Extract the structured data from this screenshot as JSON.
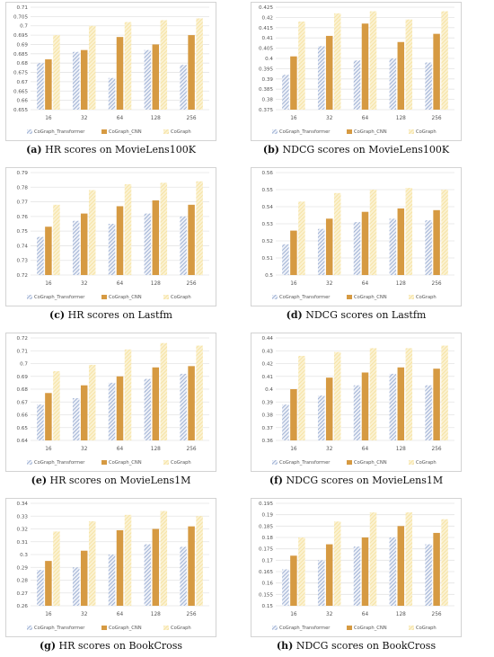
{
  "legend_labels": [
    "CoGraph_Transformer",
    "CoGraph_CNN",
    "CoGraph"
  ],
  "colors": {
    "transformer": "#8da3cc",
    "cnn": "#d69a42",
    "cograph": "#f5df99",
    "grid": "#e4e4e4",
    "frame": "#d3d3d3",
    "axis_text": "#555555"
  },
  "chart_data": [
    {
      "type": "bar",
      "caption_tag": "(a)",
      "caption_text": "HR scores on MovieLens100K",
      "categories": [
        "16",
        "32",
        "64",
        "128",
        "256"
      ],
      "ylim": [
        0.655,
        0.71
      ],
      "yticks": [
        "0.655",
        "0.66",
        "0.665",
        "0.67",
        "0.675",
        "0.68",
        "0.685",
        "0.69",
        "0.695",
        "0.7",
        "0.705",
        "0.71"
      ],
      "series": [
        {
          "name": "CoGraph_Transformer",
          "values": [
            0.68,
            0.686,
            0.672,
            0.687,
            0.679
          ]
        },
        {
          "name": "CoGraph_CNN",
          "values": [
            0.682,
            0.687,
            0.694,
            0.69,
            0.695
          ]
        },
        {
          "name": "CoGraph",
          "values": [
            0.695,
            0.7,
            0.702,
            0.703,
            0.704
          ]
        }
      ]
    },
    {
      "type": "bar",
      "caption_tag": "(b)",
      "caption_text": "NDCG scores on MovieLens100K",
      "categories": [
        "16",
        "32",
        "64",
        "128",
        "256"
      ],
      "ylim": [
        0.375,
        0.425
      ],
      "yticks": [
        "0.375",
        "0.38",
        "0.385",
        "0.39",
        "0.395",
        "0.4",
        "0.405",
        "0.41",
        "0.415",
        "0.42",
        "0.425"
      ],
      "series": [
        {
          "name": "CoGraph_Transformer",
          "values": [
            0.392,
            0.406,
            0.399,
            0.4,
            0.398
          ]
        },
        {
          "name": "CoGraph_CNN",
          "values": [
            0.401,
            0.411,
            0.417,
            0.408,
            0.412
          ]
        },
        {
          "name": "CoGraph",
          "values": [
            0.418,
            0.422,
            0.423,
            0.419,
            0.423
          ]
        }
      ]
    },
    {
      "type": "bar",
      "caption_tag": "(c)",
      "caption_text": "HR scores on Lastfm",
      "categories": [
        "16",
        "32",
        "64",
        "128",
        "256"
      ],
      "ylim": [
        0.72,
        0.79
      ],
      "yticks": [
        "0.72",
        "0.73",
        "0.74",
        "0.75",
        "0.76",
        "0.77",
        "0.78",
        "0.79"
      ],
      "series": [
        {
          "name": "CoGraph_Transformer",
          "values": [
            0.746,
            0.757,
            0.755,
            0.762,
            0.76
          ]
        },
        {
          "name": "CoGraph_CNN",
          "values": [
            0.753,
            0.762,
            0.767,
            0.771,
            0.768
          ]
        },
        {
          "name": "CoGraph",
          "values": [
            0.768,
            0.778,
            0.782,
            0.783,
            0.784
          ]
        }
      ]
    },
    {
      "type": "bar",
      "caption_tag": "(d)",
      "caption_text": "NDCG scores on Lastfm",
      "categories": [
        "16",
        "32",
        "64",
        "128",
        "256"
      ],
      "ylim": [
        0.5,
        0.56
      ],
      "yticks": [
        "0.5",
        "0.51",
        "0.52",
        "0.53",
        "0.54",
        "0.55",
        "0.56"
      ],
      "series": [
        {
          "name": "CoGraph_Transformer",
          "values": [
            0.518,
            0.527,
            0.531,
            0.533,
            0.532
          ]
        },
        {
          "name": "CoGraph_CNN",
          "values": [
            0.526,
            0.533,
            0.537,
            0.539,
            0.538
          ]
        },
        {
          "name": "CoGraph",
          "values": [
            0.543,
            0.548,
            0.55,
            0.551,
            0.55
          ]
        }
      ]
    },
    {
      "type": "bar",
      "caption_tag": "(e)",
      "caption_text": "HR scores on MovieLens1M",
      "categories": [
        "16",
        "32",
        "64",
        "128",
        "256"
      ],
      "ylim": [
        0.64,
        0.72
      ],
      "yticks": [
        "0.64",
        "0.65",
        "0.66",
        "0.67",
        "0.68",
        "0.69",
        "0.7",
        "0.71",
        "0.72"
      ],
      "series": [
        {
          "name": "CoGraph_Transformer",
          "values": [
            0.668,
            0.673,
            0.685,
            0.688,
            0.692
          ]
        },
        {
          "name": "CoGraph_CNN",
          "values": [
            0.677,
            0.683,
            0.69,
            0.697,
            0.698
          ]
        },
        {
          "name": "CoGraph",
          "values": [
            0.694,
            0.699,
            0.711,
            0.716,
            0.714
          ]
        }
      ]
    },
    {
      "type": "bar",
      "caption_tag": "(f)",
      "caption_text": "NDCG scores on MovieLens1M",
      "categories": [
        "16",
        "32",
        "64",
        "128",
        "256"
      ],
      "ylim": [
        0.36,
        0.44
      ],
      "yticks": [
        "0.36",
        "0.37",
        "0.38",
        "0.39",
        "0.4",
        "0.41",
        "0.42",
        "0.43",
        "0.44"
      ],
      "series": [
        {
          "name": "CoGraph_Transformer",
          "values": [
            0.388,
            0.395,
            0.403,
            0.412,
            0.403
          ]
        },
        {
          "name": "CoGraph_CNN",
          "values": [
            0.4,
            0.409,
            0.413,
            0.417,
            0.416
          ]
        },
        {
          "name": "CoGraph",
          "values": [
            0.426,
            0.429,
            0.432,
            0.432,
            0.434
          ]
        }
      ]
    },
    {
      "type": "bar",
      "caption_tag": "(g)",
      "caption_text": "HR scores on BookCross",
      "categories": [
        "16",
        "32",
        "64",
        "128",
        "256"
      ],
      "ylim": [
        0.26,
        0.34
      ],
      "yticks": [
        "0.26",
        "0.27",
        "0.28",
        "0.29",
        "0.3",
        "0.31",
        "0.32",
        "0.33",
        "0.34"
      ],
      "series": [
        {
          "name": "CoGraph_Transformer",
          "values": [
            0.288,
            0.29,
            0.3,
            0.308,
            0.306
          ]
        },
        {
          "name": "CoGraph_CNN",
          "values": [
            0.295,
            0.303,
            0.319,
            0.32,
            0.322
          ]
        },
        {
          "name": "CoGraph",
          "values": [
            0.318,
            0.326,
            0.331,
            0.334,
            0.33
          ]
        }
      ]
    },
    {
      "type": "bar",
      "caption_tag": "(h)",
      "caption_text": "NDCG scores on BookCross",
      "categories": [
        "16",
        "32",
        "64",
        "128",
        "256"
      ],
      "ylim": [
        0.15,
        0.195
      ],
      "yticks": [
        "0.15",
        "0.155",
        "0.16",
        "0.165",
        "0.17",
        "0.175",
        "0.18",
        "0.185",
        "0.19",
        "0.195"
      ],
      "series": [
        {
          "name": "CoGraph_Transformer",
          "values": [
            0.166,
            0.17,
            0.176,
            0.18,
            0.177
          ]
        },
        {
          "name": "CoGraph_CNN",
          "values": [
            0.172,
            0.177,
            0.18,
            0.185,
            0.182
          ]
        },
        {
          "name": "CoGraph",
          "values": [
            0.18,
            0.187,
            0.191,
            0.191,
            0.188
          ]
        }
      ]
    }
  ]
}
